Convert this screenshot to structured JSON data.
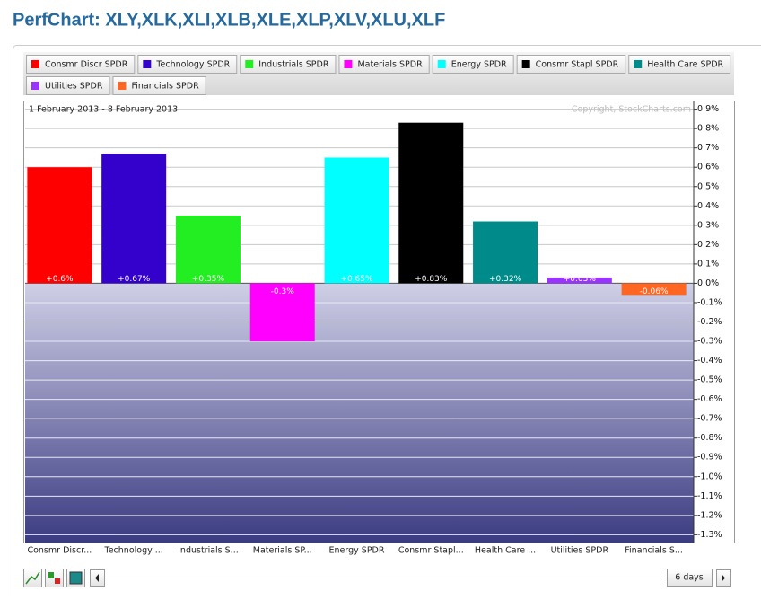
{
  "chart_data": {
    "type": "bar",
    "title": "PerfChart: XLY,XLK,XLI,XLB,XLE,XLP,XLV,XLU,XLF",
    "subtitle": "1 February 2013 - 8 February 2013",
    "copyright": "Copyright, StockCharts.com",
    "period": "6 days",
    "legend": [
      "Consmr Discr SPDR",
      "Technology SPDR",
      "Industrials SPDR",
      "Materials SPDR",
      "Energy SPDR",
      "Consmr Stapl SPDR",
      "Health Care SPDR",
      "Utilities SPDR",
      "Financials SPDR"
    ],
    "categories": [
      "Consmr Discr...",
      "Technology ...",
      "Industrials S...",
      "Materials SP...",
      "Energy SPDR",
      "Consmr Stapl...",
      "Health Care ...",
      "Utilities SPDR",
      "Financials S..."
    ],
    "values": [
      0.6,
      0.67,
      0.35,
      -0.3,
      0.65,
      0.83,
      0.32,
      0.03,
      -0.06
    ],
    "value_labels": [
      "+0.6%",
      "+0.67%",
      "+0.35%",
      "-0.3%",
      "+0.65%",
      "+0.83%",
      "+0.32%",
      "+0.03%",
      "-0.06%"
    ],
    "colors": [
      "#ff0000",
      "#3300cc",
      "#22ee22",
      "#ff00ff",
      "#00ffff",
      "#000000",
      "#008b8b",
      "#9933ff",
      "#ff6622"
    ],
    "ylim": [
      -1.34,
      0.94
    ],
    "yticks": [
      {
        "value": 0.9,
        "label": "0.9%"
      },
      {
        "value": 0.8,
        "label": "0.8%"
      },
      {
        "value": 0.7,
        "label": "0.7%"
      },
      {
        "value": 0.6,
        "label": "0.6%"
      },
      {
        "value": 0.5,
        "label": "0.5%"
      },
      {
        "value": 0.4,
        "label": "0.4%"
      },
      {
        "value": 0.3,
        "label": "0.3%"
      },
      {
        "value": 0.2,
        "label": "0.2%"
      },
      {
        "value": 0.1,
        "label": "0.1%"
      },
      {
        "value": 0,
        "label": "0.0%"
      },
      {
        "value": -0.1,
        "label": "-0.1%"
      },
      {
        "value": -0.2,
        "label": "-0.2%"
      },
      {
        "value": -0.3,
        "label": "-0.3%"
      },
      {
        "value": -0.4,
        "label": "-0.4%"
      },
      {
        "value": -0.5,
        "label": "-0.5%"
      },
      {
        "value": -0.6,
        "label": "-0.6%"
      },
      {
        "value": -0.7,
        "label": "-0.7%"
      },
      {
        "value": -0.8,
        "label": "-0.8%"
      },
      {
        "value": -0.9,
        "label": "-0.9%"
      },
      {
        "value": -1.0,
        "label": "-1.0%"
      },
      {
        "value": -1.1,
        "label": "-1.1%"
      },
      {
        "value": -1.2,
        "label": "-1.2%"
      },
      {
        "value": -1.3,
        "label": "-1.3%"
      }
    ],
    "grid": true
  }
}
